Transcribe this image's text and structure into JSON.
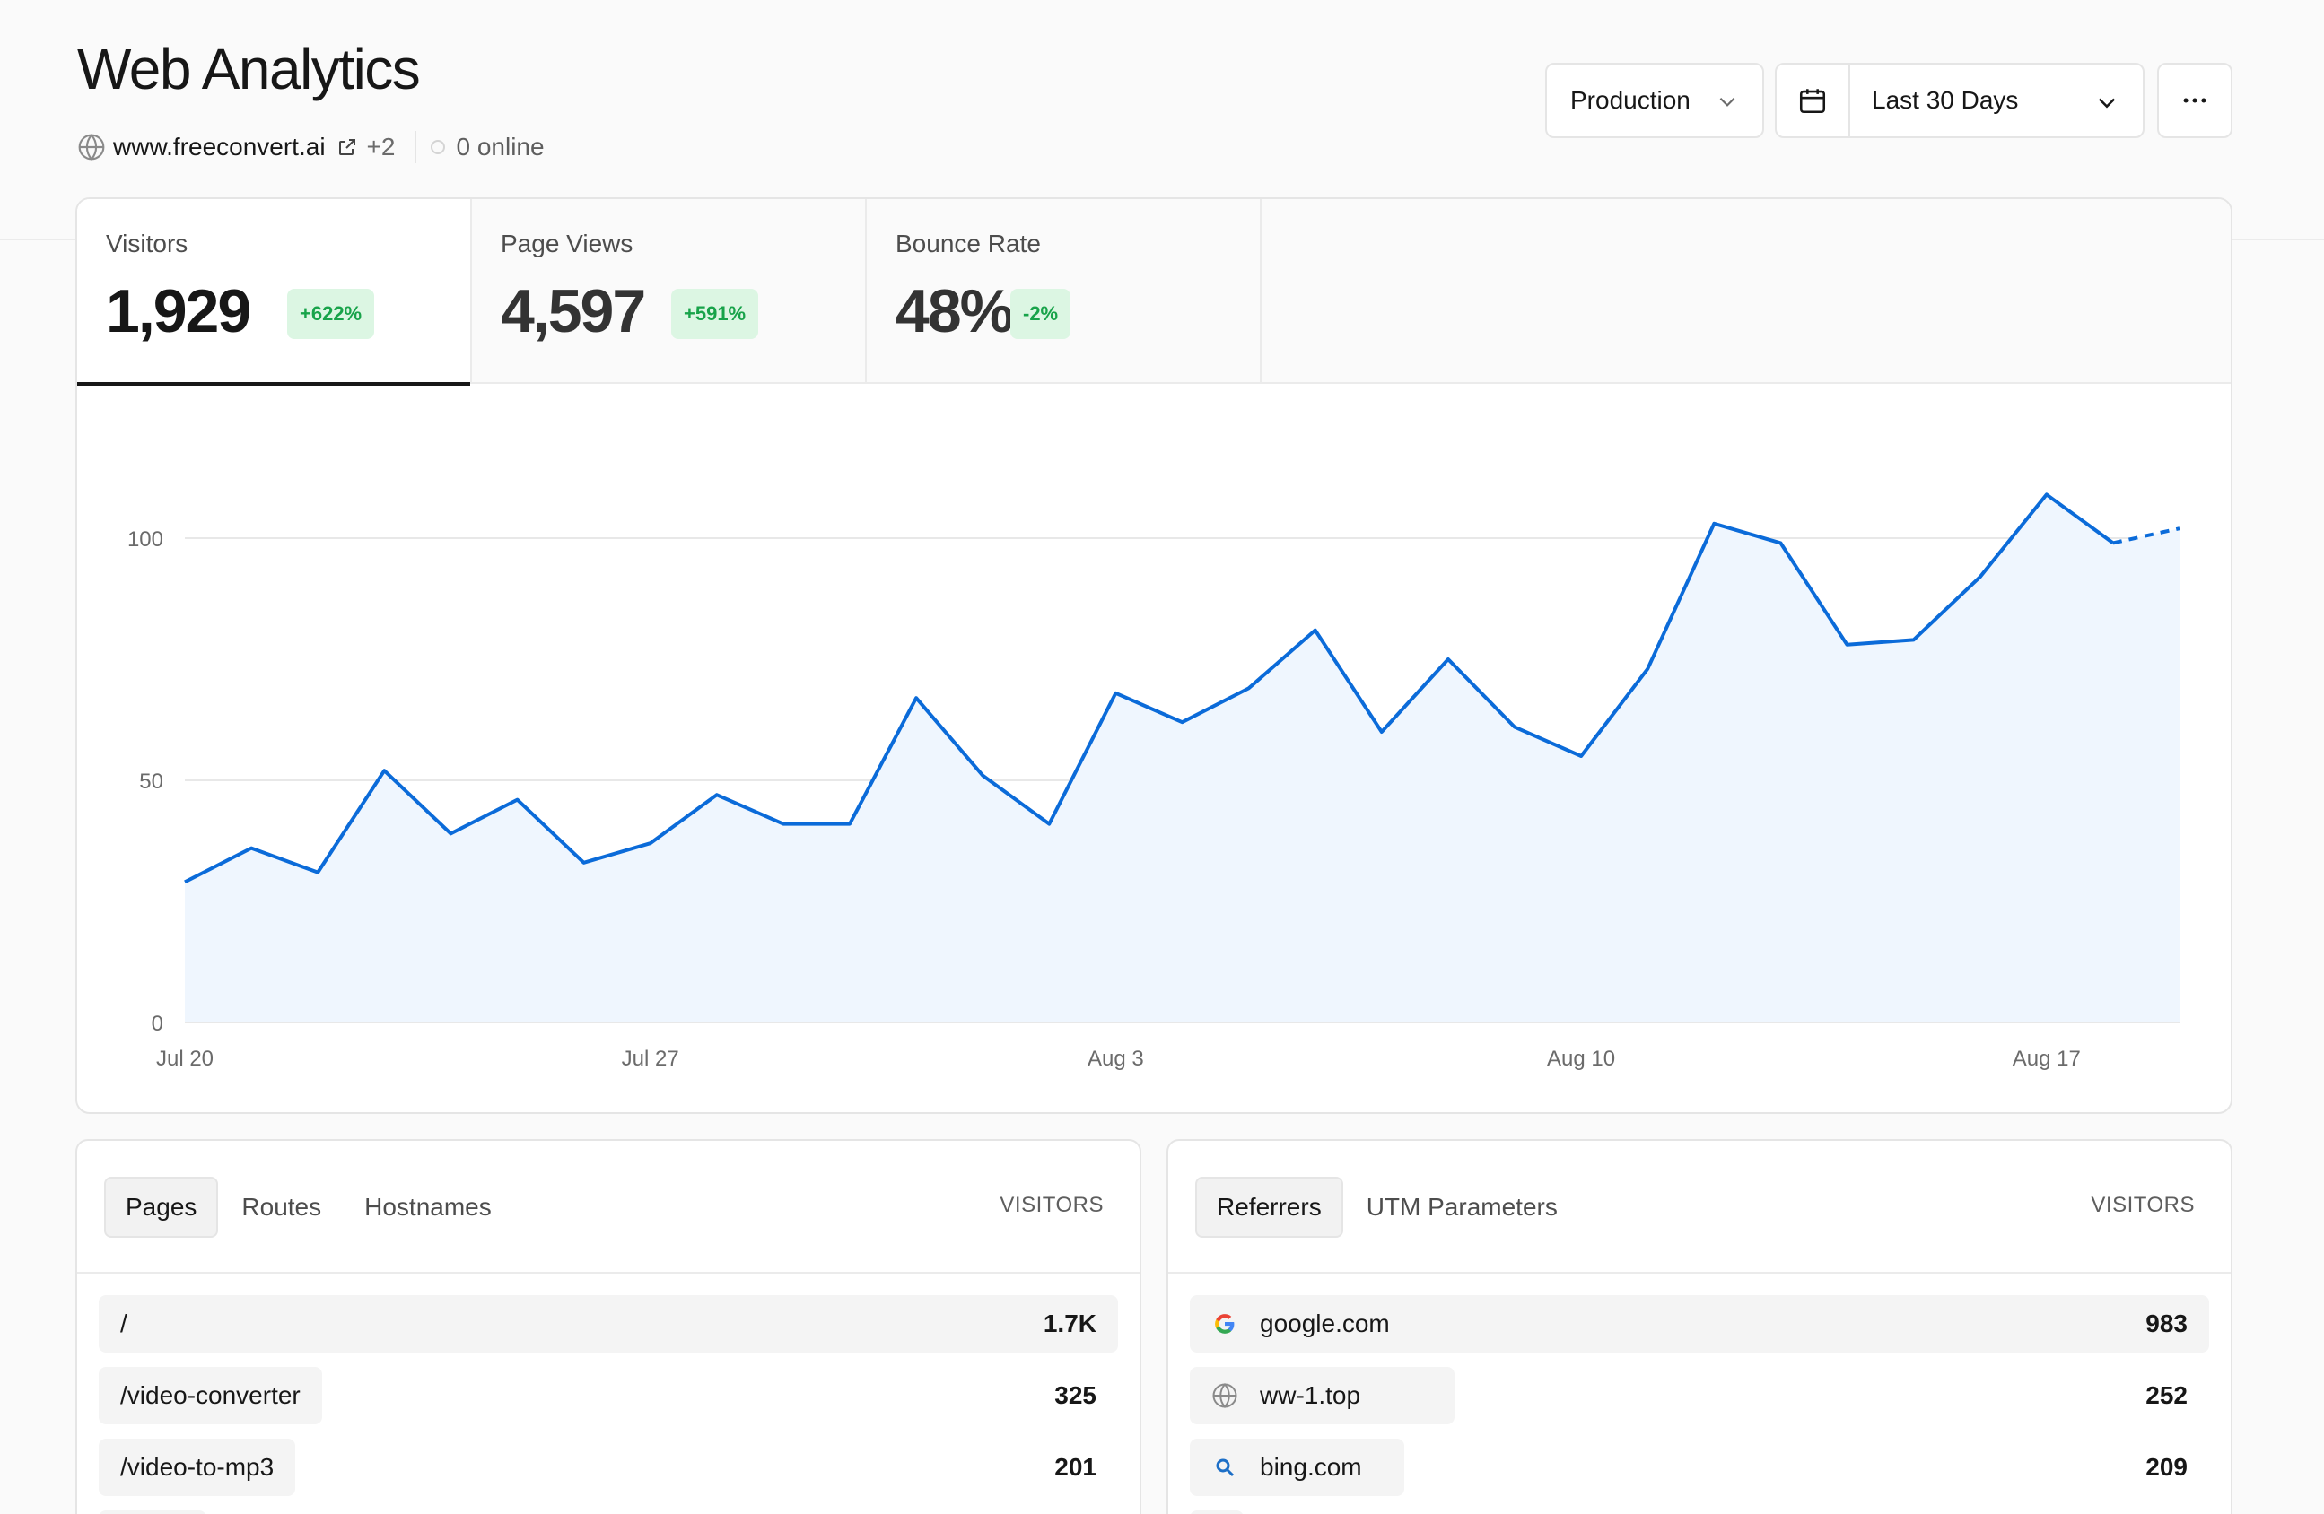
{
  "header": {
    "title": "Web Analytics",
    "domain": "www.freeconvert.ai",
    "extra_domains": "+2",
    "online": "0 online"
  },
  "controls": {
    "environment": "Production",
    "date_range": "Last 30 Days"
  },
  "stats": [
    {
      "label": "Visitors",
      "value": "1,929",
      "change": "+622%"
    },
    {
      "label": "Page Views",
      "value": "4,597",
      "change": "+591%"
    },
    {
      "label": "Bounce Rate",
      "value": "48%",
      "change": "-2%"
    }
  ],
  "colors": {
    "line": "#0b6bd9",
    "area": "#eff6fe",
    "badge_bg": "#dcf6e3",
    "badge_text": "#18a34a"
  },
  "chart_data": {
    "type": "area",
    "series": [
      {
        "values": [
          29,
          36,
          31,
          52,
          39,
          46,
          33,
          37,
          47,
          41,
          41,
          67,
          51,
          41,
          68,
          62,
          69,
          81,
          60,
          75,
          61,
          55,
          73,
          103,
          99,
          78,
          79,
          92,
          109,
          99,
          102
        ]
      }
    ],
    "projected_from_index": 29,
    "x_tick_labels": [
      "Jul 20",
      "Jul 27",
      "Aug 3",
      "Aug 10",
      "Aug 17"
    ],
    "x_tick_indices": [
      0,
      7,
      14,
      21,
      28
    ],
    "y_ticks": [
      0,
      50,
      100
    ],
    "ylim": [
      0,
      115
    ],
    "grid": true,
    "title": "",
    "xlabel": "",
    "ylabel": ""
  },
  "pages_panel": {
    "tabs": [
      "Pages",
      "Routes",
      "Hostnames"
    ],
    "column_header": "VISITORS",
    "rows": [
      {
        "label": "/",
        "value": "1.7K",
        "share": 1.0
      },
      {
        "label": "/video-converter",
        "value": "325",
        "share": 0.19
      },
      {
        "label": "/video-to-mp3",
        "value": "201",
        "share": 0.12
      }
    ]
  },
  "referrers_panel": {
    "tabs": [
      "Referrers",
      "UTM Parameters"
    ],
    "column_header": "VISITORS",
    "rows": [
      {
        "label": "google.com",
        "value": "983",
        "share": 1.0,
        "icon": "google-icon"
      },
      {
        "label": "ww-1.top",
        "value": "252",
        "share": 0.26,
        "icon": "globe-icon"
      },
      {
        "label": "bing.com",
        "value": "209",
        "share": 0.21,
        "icon": "search-icon"
      }
    ]
  }
}
